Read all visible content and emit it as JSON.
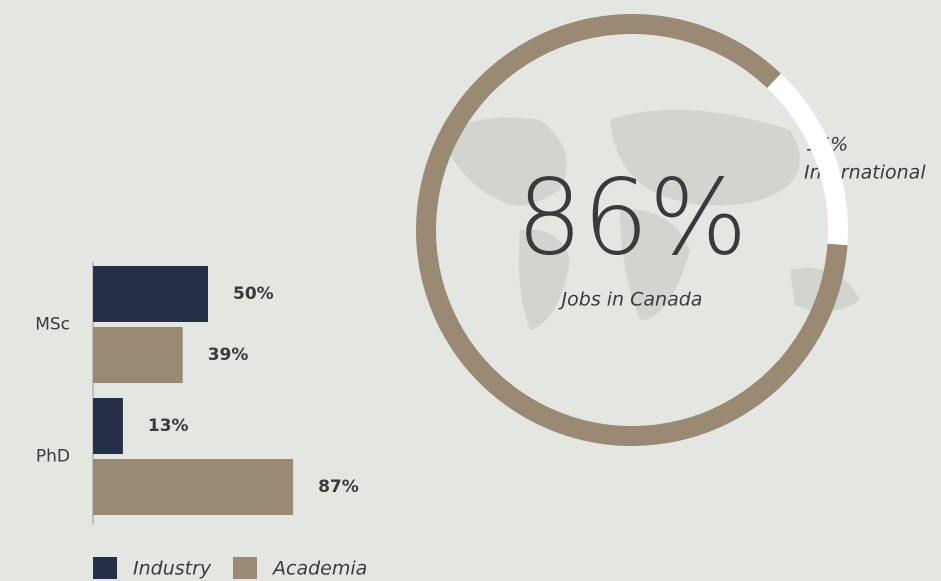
{
  "chart_data": [
    {
      "type": "donut",
      "categories": [
        "Jobs in Canada",
        "International"
      ],
      "values": [
        86,
        14
      ],
      "value_labels": [
        "86%",
        "14%"
      ],
      "colors": [
        "#9a8a74",
        "#ffffff"
      ]
    },
    {
      "type": "hbar",
      "categories": [
        "MSc",
        "PhD"
      ],
      "series": [
        {
          "name": "Industry",
          "color": "#253048",
          "values": [
            50,
            13
          ],
          "value_labels": [
            "50%",
            "13%"
          ]
        },
        {
          "name": "Academia",
          "color": "#9a8a74",
          "values": [
            39,
            87
          ],
          "value_labels": [
            "39%",
            "87%"
          ]
        }
      ]
    }
  ]
}
